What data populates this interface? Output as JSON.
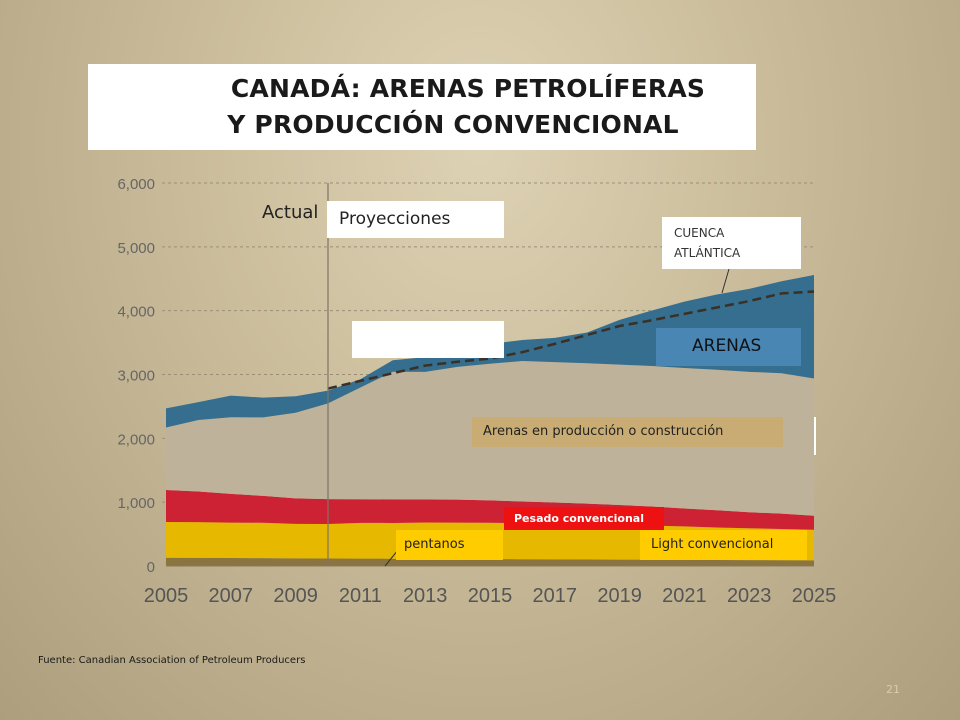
{
  "slide": {
    "title_line1": "CANADÁ: ARENAS PETROLÍFERAS",
    "title_line2": "Y PRODUCCIÓN CONVENCIONAL",
    "source": "Fuente: Canadian  Association of Petroleum Producers",
    "slide_number": "21"
  },
  "labels": {
    "actual": "Actual",
    "proyecciones": "Proyecciones",
    "cuenca_line1": "CUENCA",
    "cuenca_line2": "ATLÁNTICA",
    "arenas": "ARENAS",
    "arenas_prod": "Arenas en producción o construcción",
    "pesado": "Pesado convencional",
    "pentanos": "pentanos",
    "light": "Light convencional"
  },
  "colors": {
    "pentanos": "#8a7440",
    "light": "#e6b800",
    "pesado": "#cc2233",
    "arenas_prod": "#bfb29a",
    "arenas": "#356e8e",
    "forecast_line": "#3a3025",
    "pesado_label_bg": "#ee1111",
    "light_label_bg": "#ffcc00",
    "arenas_label_bg": "#4a86b4",
    "arenas_prod_label_bg": "#c8ac73"
  },
  "chart_data": {
    "type": "area",
    "x": [
      2005,
      2006,
      2007,
      2008,
      2009,
      2010,
      2011,
      2012,
      2013,
      2014,
      2015,
      2016,
      2017,
      2018,
      2019,
      2020,
      2021,
      2022,
      2023,
      2024,
      2025
    ],
    "x_tick_labels": [
      "2005",
      "2007",
      "2009",
      "2011",
      "2013",
      "2015",
      "2017",
      "2019",
      "2021",
      "2023",
      "2025"
    ],
    "y_tick_labels": [
      "0",
      "1,000",
      "2,000",
      "3,000",
      "4,000",
      "5,000",
      "6,000"
    ],
    "ylim": [
      0,
      6000
    ],
    "stacked": true,
    "series": [
      {
        "name": "pentanos",
        "values": [
          130,
          128,
          125,
          123,
          120,
          118,
          116,
          114,
          112,
          110,
          108,
          106,
          104,
          102,
          100,
          98,
          96,
          94,
          92,
          90,
          88
        ]
      },
      {
        "name": "Light convencional",
        "values": [
          560,
          560,
          555,
          555,
          540,
          540,
          560,
          560,
          570,
          570,
          570,
          565,
          560,
          555,
          545,
          535,
          525,
          510,
          500,
          490,
          480
        ]
      },
      {
        "name": "Pesado convencional",
        "values": [
          500,
          480,
          450,
          420,
          400,
          390,
          370,
          370,
          360,
          360,
          350,
          340,
          330,
          320,
          310,
          300,
          280,
          270,
          250,
          240,
          220
        ]
      },
      {
        "name": "Arenas en producción o construcción",
        "values": [
          980,
          1120,
          1200,
          1230,
          1340,
          1500,
          1750,
          2000,
          2000,
          2080,
          2140,
          2200,
          2200,
          2200,
          2200,
          2200,
          2200,
          2200,
          2200,
          2200,
          2150
        ]
      },
      {
        "name": "ARENAS",
        "values": [
          300,
          280,
          340,
          310,
          260,
          200,
          130,
          180,
          230,
          280,
          310,
          330,
          380,
          480,
          700,
          870,
          1040,
          1180,
          1300,
          1440,
          1620
        ]
      }
    ],
    "forecast_line": {
      "x": [
        2010,
        2011,
        2012,
        2013,
        2014,
        2015,
        2016,
        2017,
        2018,
        2019,
        2020,
        2021,
        2022,
        2023,
        2024,
        2025
      ],
      "values": [
        2780,
        2900,
        3020,
        3140,
        3200,
        3250,
        3350,
        3480,
        3620,
        3760,
        3850,
        3950,
        4050,
        4150,
        4270,
        4300
      ]
    },
    "actual_projection_divider": 2010,
    "grid": "horizontal dashed",
    "legend": "inline labels"
  }
}
